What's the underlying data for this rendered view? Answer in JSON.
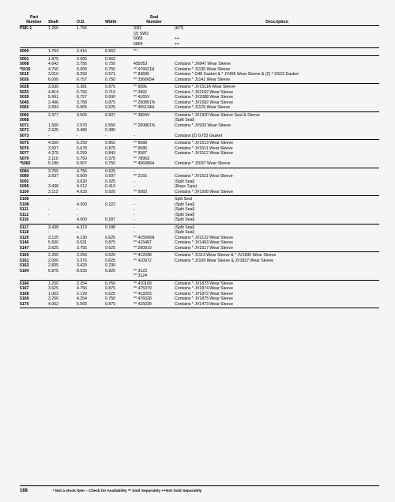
{
  "headers": {
    "part1": "Part",
    "part2": "Number",
    "shaft": "Shaft",
    "od": "O.D.",
    "width": "Width",
    "seal1": "Seal",
    "seal2": "Number",
    "desc": "Description"
  },
  "groups": [
    {
      "rows": [
        {
          "p": "PSK-1",
          "s": "1.250",
          "o": "1.756",
          "w": "-",
          "seal": "SR2",
          "d": "(KIT)",
          "bold": true
        },
        {
          "p": "",
          "s": "",
          "o": "",
          "w": "",
          "seal": "(2) SW2",
          "d": ""
        },
        {
          "p": "",
          "s": "",
          "o": "",
          "w": "",
          "seal": "5683",
          "d": "++"
        },
        {
          "p": "",
          "s": "",
          "o": "",
          "w": "",
          "seal": "5864",
          "d": "++"
        }
      ]
    },
    {
      "rows": [
        {
          "p": "5000",
          "s": "1.763",
          "o": "2.416",
          "w": "0.563",
          "seal": "** -",
          "d": ""
        }
      ]
    },
    {
      "rows": [
        {
          "p": "5001",
          "s": "1.875",
          "o": "2.565",
          "w": "0.563",
          "seal": "",
          "d": ""
        },
        {
          "p": "5008",
          "s": "4.642",
          "o": "5.756",
          "w": "0.750",
          "seal": "455053",
          "d": "Contains * JX847 Wear Sleeve"
        },
        {
          "p": "*5010",
          "s": "4.750",
          "o": "6.006",
          "w": "0.750",
          "seal": "** 476621H",
          "d": "Contains * J1135 Wear Sleeve"
        },
        {
          "p": "5015",
          "s": "3.010",
          "o": "8.250",
          "w": "0.571",
          "seal": "** 83695",
          "d": "Contains * G48 Gasket & * JV495 Wear Sleeve & (2) * G523 Gasket"
        },
        {
          "p": "5026",
          "s": "6.000",
          "o": "6.757",
          "w": "0.750",
          "seal": "** 336665H",
          "d": "Contains * J1141 Wear Sleeve"
        }
      ]
    },
    {
      "rows": [
        {
          "p": "5028",
          "s": "3.930",
          "o": "5.381",
          "w": "0.875",
          "seal": "** 9586",
          "d": "Contains * JV1511A Wear Sleeve"
        },
        {
          "p": "5033",
          "s": "4.814",
          "o": "5.756",
          "w": "0.710",
          "seal": "** 3492",
          "d": "Contains * JX2162 Wear Sleeve"
        },
        {
          "p": "5039",
          "s": "5.991",
          "o": "6.757",
          "w": "0.500",
          "seal": "** 4165V",
          "d": "Contains * JV2088 Wear Sleeve"
        },
        {
          "p": "5045",
          "s": "2.496",
          "o": "3.758",
          "w": "0.875",
          "seal": "** 200851%",
          "d": "Contains * JV1582 Wear Sleeve"
        },
        {
          "p": "5065",
          "s": "3.994",
          "o": "5.005",
          "w": "0.625",
          "seal": "** 455134H",
          "d": "Contains * J1129 Wear Sleeve"
        }
      ]
    },
    {
      "rows": [
        {
          "p": "5066",
          "s": "2.377",
          "o": "3.505",
          "w": "0.937",
          "seal": "** 3894V",
          "d": "Contains * JX1920 Wear Sleeve Seal & Sleeve"
        },
        {
          "p": "5068",
          "s": "",
          "o": "",
          "w": "",
          "seal": "",
          "d": "(Split Seal)"
        },
        {
          "p": "5071",
          "s": "1.500",
          "o": "2.570",
          "w": "0.550",
          "seal": "** 200861%",
          "d": "Contains * JV933 Wear Sleeve"
        },
        {
          "p": "5072",
          "s": "2.625",
          "o": "3.480",
          "w": "0.380",
          "seal": "",
          "d": ""
        },
        {
          "p": "5073",
          "s": "-",
          "o": "-",
          "w": "-",
          "seal": "-",
          "d": "Contains (2) G753 Gasket"
        }
      ]
    },
    {
      "rows": [
        {
          "p": "5075",
          "s": "4.500",
          "o": "6.259",
          "w": "0.862",
          "seal": "** 9588",
          "d": "Contains * JV1513 Wear Sleeve"
        },
        {
          "p": "5076",
          "s": "3.937",
          "o": "5.678",
          "w": "0.875",
          "seal": "** 9586",
          "d": "Contains * JV1511 Wear Sleeve"
        },
        {
          "p": "5077",
          "s": "4.375",
          "o": "6.259",
          "w": "0.843",
          "seal": "** 9587",
          "d": "Contains * JV1512 Wear Sleeve"
        },
        {
          "p": "5079",
          "s": "3.110",
          "o": "5.750",
          "w": "0.375",
          "seal": "** 7896S",
          "d": ""
        },
        {
          "p": "*5082",
          "s": "5.180",
          "o": "6.507",
          "w": "0.750",
          "seal": "** 456986H",
          "d": "Contains * J2037 Wear Sleeve"
        }
      ]
    },
    {
      "rows": [
        {
          "p": "5084",
          "s": "3.750",
          "o": "4.756",
          "w": "0.625",
          "seal": "-",
          "d": ""
        },
        {
          "p": "5089",
          "s": "3.937",
          "o": "5.509",
          "w": "0.597",
          "seal": "** 2155",
          "d": "Contains * JV1511 Wear Sleeve"
        },
        {
          "p": "5092",
          "s": "",
          "o": "3.030",
          "w": "0.325",
          "seal": "-",
          "d": "(Split Seal)"
        },
        {
          "p": "5095",
          "s": "3.438",
          "o": "4.012",
          "w": "0.410",
          "seal": "-",
          "d": "(Rope Type)"
        },
        {
          "p": "5100",
          "s": "3.112",
          "o": "4.633",
          "w": "0.920",
          "seal": "** 9583",
          "d": "Contains * JV1508 Wear Sleeve"
        }
      ]
    },
    {
      "rows": [
        {
          "p": "5106",
          "s": "-",
          "o": "-",
          "w": "",
          "seal": "-",
          "d": "Split Seal"
        },
        {
          "p": "5108",
          "s": "",
          "o": "4.200",
          "w": "0.222",
          "seal": "-",
          "d": "(Split Seal)"
        },
        {
          "p": "5111",
          "s": "-",
          "o": "-",
          "w": "",
          "seal": "-",
          "d": "(Split Seal)"
        },
        {
          "p": "5112",
          "s": "-",
          "o": "-",
          "w": "",
          "seal": "-",
          "d": "(Split Seal)"
        },
        {
          "p": "5116",
          "s": "",
          "o": "4.000",
          "w": "0.187",
          "seal": "-",
          "d": "(Split Seal)"
        }
      ]
    },
    {
      "rows": [
        {
          "p": "5117",
          "s": "3.438",
          "o": "4.313",
          "w": "0.188",
          "seal": "-",
          "d": "(Split Seal)"
        },
        {
          "p": "5118",
          "s": "-",
          "o": "-",
          "w": "",
          "seal": "-",
          "d": "(Split Seal)"
        },
        {
          "p": "5120",
          "s": "3.125",
          "o": "4.130",
          "w": "0.625",
          "seal": "** 415566N",
          "d": "Contains * JV2122 Wear Sleeve"
        },
        {
          "p": "5146",
          "s": "5.500",
          "o": "6.631",
          "w": "0.875",
          "seal": "** 415487",
          "d": "Contains * JV1463 Wear Sleeve"
        },
        {
          "p": "5147",
          "s": "2.625",
          "o": "3.755",
          "w": "0.625",
          "seal": "** 200919",
          "d": "Contains * JV1517 Wear Sleeve"
        }
      ]
    },
    {
      "rows": [
        {
          "p": "5160",
          "s": "2.250",
          "o": "3.256",
          "w": "0.625",
          "seal": "** 412038",
          "d": "Contains * J1113 Wear Sleeve & * JV1836 Wear Sleeve"
        },
        {
          "p": "5161",
          "s": "2.000",
          "o": "3.376",
          "w": "0.625",
          "seal": "** 410972",
          "d": "Contains * J1109 Wear Sleeve & JV1837 Wear Sleeve"
        },
        {
          "p": "5163",
          "s": "2.835",
          "o": "3.425",
          "w": "0.230",
          "seal": "",
          "d": ""
        },
        {
          "p": "5164",
          "s": "6.875",
          "o": "8.633",
          "w": "0.825",
          "seal": "** 3123",
          "d": ""
        },
        {
          "p": "",
          "s": "",
          "o": "",
          "w": "",
          "seal": "** 3124",
          "d": ""
        }
      ]
    },
    {
      "rows": [
        {
          "p": "5166",
          "s": "1.250",
          "o": "2.254",
          "w": "0.750",
          "seal": "** 410169",
          "d": "Contains * JV1873 Wear Sleeve"
        },
        {
          "p": "5167",
          "s": "3.625",
          "o": "4.756",
          "w": "0.875",
          "seal": "** 475379",
          "d": "Contains * JV1874 Wear Sleeve"
        },
        {
          "p": "5168",
          "s": "1.062",
          "o": "2.129",
          "w": "0.625",
          "seal": "** 413293",
          "d": "Contains * JV1872 Wear Sleeve"
        },
        {
          "p": "5169",
          "s": "3.250",
          "o": "4.254",
          "w": "0.750",
          "seal": "** 476028",
          "d": "Contains * JV1875 Wear Sleeve"
        },
        {
          "p": "5170",
          "s": "4.062",
          "o": "5.565",
          "w": "0.875",
          "seal": "** 415039",
          "d": "Contains * JV1473 Wear Sleeve"
        }
      ]
    }
  ],
  "pagenum": "168",
  "footnote": "* Not a stock item – Check for Availability     ** Sold Separately     ++Not Sold Separately"
}
